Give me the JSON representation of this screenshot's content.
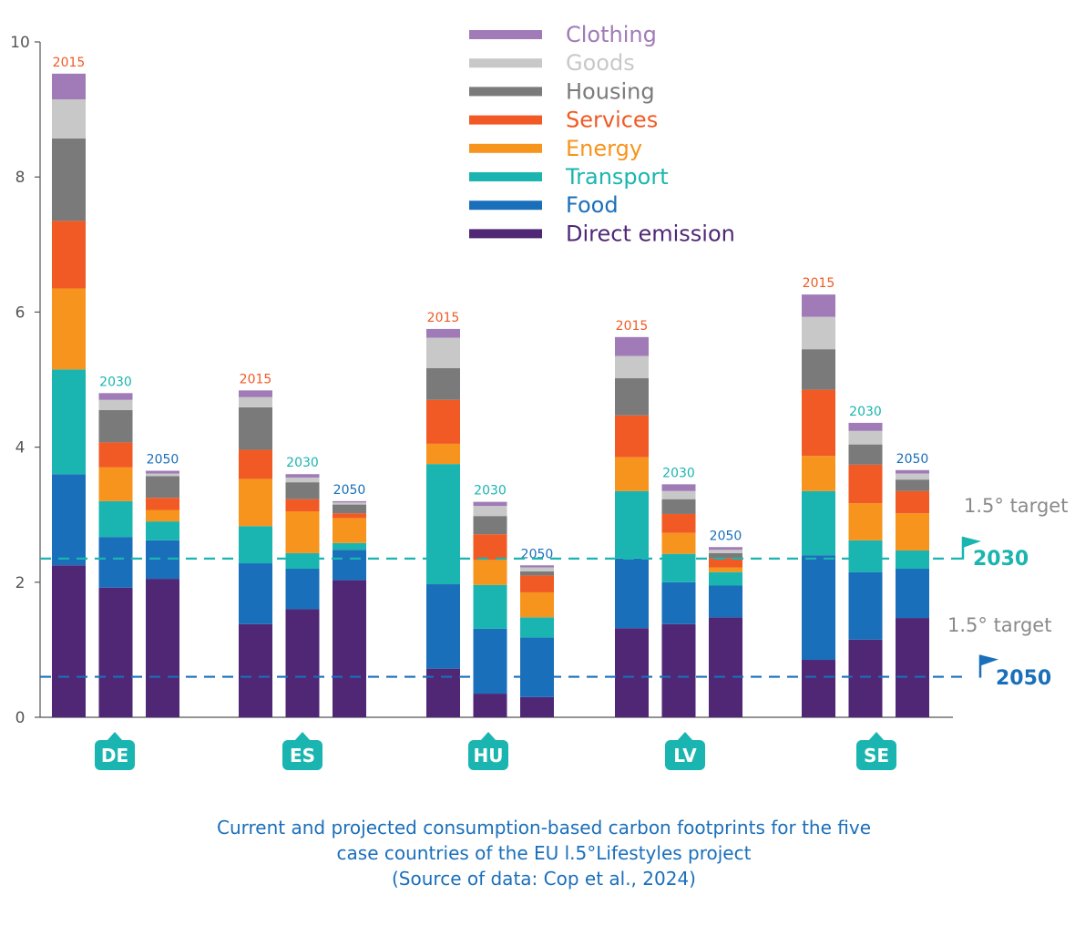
{
  "chart_data": {
    "type": "stacked-bar",
    "title": "",
    "ylim": [
      0,
      10
    ],
    "yticks": [
      "0",
      "2",
      "4",
      "6",
      "8",
      "10"
    ],
    "categories": [
      "DE",
      "ES",
      "HU",
      "LV",
      "SE"
    ],
    "years": [
      "2015",
      "2030",
      "2050"
    ],
    "series": [
      {
        "name": "Direct emission",
        "color": "#4f2775",
        "values": [
          [
            2.25,
            1.92,
            2.05
          ],
          [
            1.38,
            1.6,
            2.03
          ],
          [
            0.72,
            0.35,
            0.3
          ],
          [
            1.32,
            1.38,
            1.48
          ],
          [
            0.85,
            1.15,
            1.47
          ]
        ]
      },
      {
        "name": "Food",
        "color": "#1a6fba",
        "values": [
          [
            1.35,
            0.75,
            0.57
          ],
          [
            0.9,
            0.6,
            0.45
          ],
          [
            1.25,
            0.96,
            0.88
          ],
          [
            1.03,
            0.62,
            0.47
          ],
          [
            1.55,
            1.0,
            0.73
          ]
        ]
      },
      {
        "name": "Transport",
        "color": "#1ab5b0",
        "values": [
          [
            1.55,
            0.53,
            0.28
          ],
          [
            0.55,
            0.23,
            0.1
          ],
          [
            1.78,
            0.65,
            0.3
          ],
          [
            1.0,
            0.42,
            0.2
          ],
          [
            0.95,
            0.47,
            0.27
          ]
        ]
      },
      {
        "name": "Energy",
        "color": "#f7941d",
        "values": [
          [
            1.2,
            0.5,
            0.17
          ],
          [
            0.7,
            0.62,
            0.37
          ],
          [
            0.3,
            0.37,
            0.37
          ],
          [
            0.5,
            0.31,
            0.07
          ],
          [
            0.52,
            0.55,
            0.55
          ]
        ]
      },
      {
        "name": "Services",
        "color": "#f15a24",
        "values": [
          [
            1.0,
            0.37,
            0.18
          ],
          [
            0.43,
            0.18,
            0.07
          ],
          [
            0.65,
            0.38,
            0.25
          ],
          [
            0.62,
            0.28,
            0.13
          ],
          [
            0.98,
            0.57,
            0.33
          ]
        ]
      },
      {
        "name": "Housing",
        "color": "#7a7a7a",
        "values": [
          [
            1.22,
            0.48,
            0.32
          ],
          [
            0.63,
            0.25,
            0.13
          ],
          [
            0.47,
            0.27,
            0.06
          ],
          [
            0.55,
            0.22,
            0.08
          ],
          [
            0.6,
            0.3,
            0.17
          ]
        ]
      },
      {
        "name": "Goods",
        "color": "#c8c8c8",
        "values": [
          [
            0.58,
            0.15,
            0.04
          ],
          [
            0.15,
            0.07,
            0.03
          ],
          [
            0.45,
            0.15,
            0.06
          ],
          [
            0.33,
            0.12,
            0.05
          ],
          [
            0.48,
            0.2,
            0.09
          ]
        ]
      },
      {
        "name": "Clothing",
        "color": "#a07bb7",
        "values": [
          [
            0.38,
            0.1,
            0.04
          ],
          [
            0.1,
            0.05,
            0.02
          ],
          [
            0.13,
            0.06,
            0.03
          ],
          [
            0.28,
            0.1,
            0.04
          ],
          [
            0.33,
            0.12,
            0.05
          ]
        ]
      }
    ],
    "legend_order": [
      "Clothing",
      "Goods",
      "Housing",
      "Services",
      "Energy",
      "Transport",
      "Food",
      "Direct emission"
    ],
    "year_colors": {
      "2015": "#f15a24",
      "2030": "#1ab5b0",
      "2050": "#1a6fba"
    },
    "targets": [
      {
        "title": "1.5° target",
        "year": "2030",
        "value": 2.35,
        "color": "#1ab5b0"
      },
      {
        "title": "1.5° target",
        "year": "2050",
        "value": 0.6,
        "color": "#1a6fba"
      }
    ],
    "badge_color": "#1ab5b0"
  },
  "caption": {
    "line1": "Current and projected consumption-based carbon footprints for the five",
    "line2": "case countries of the EU l.5°Lifestyles project",
    "line3": "(Source of data: Cop et al., 2024)"
  }
}
